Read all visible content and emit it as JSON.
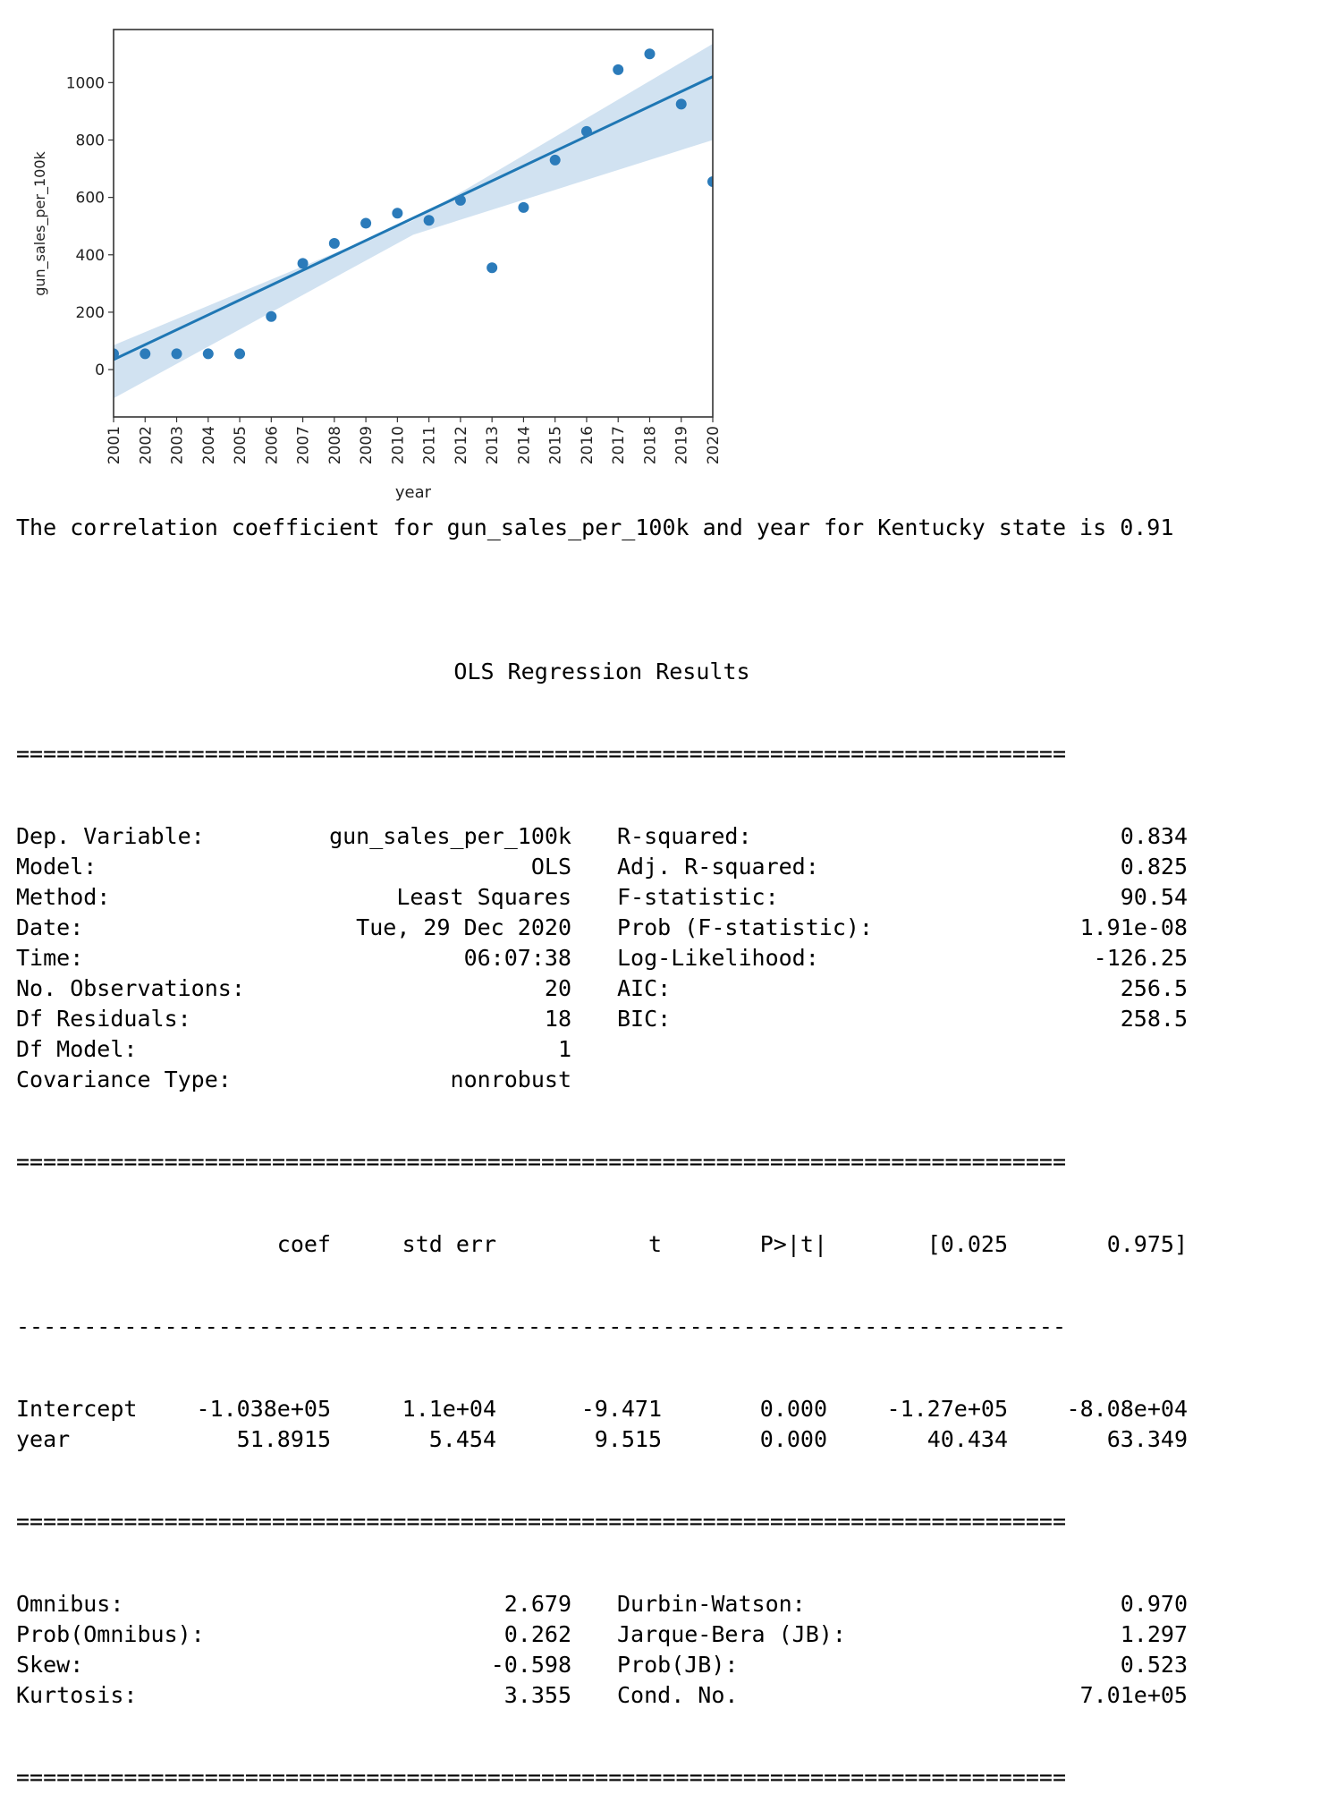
{
  "chart_data": {
    "type": "scatter",
    "title": "",
    "xlabel": "year",
    "ylabel": "gun_sales_per_100k",
    "x_ticks": [
      "2001",
      "2002",
      "2003",
      "2004",
      "2005",
      "2006",
      "2007",
      "2008",
      "2009",
      "2010",
      "2011",
      "2012",
      "2013",
      "2014",
      "2015",
      "2016",
      "2017",
      "2018",
      "2019",
      "2020"
    ],
    "y_ticks": [
      0,
      200,
      400,
      600,
      800,
      1000
    ],
    "xlim": [
      2001,
      2020
    ],
    "ylim": [
      -165,
      1185
    ],
    "points": [
      {
        "x": 2001,
        "y": 55
      },
      {
        "x": 2002,
        "y": 55
      },
      {
        "x": 2003,
        "y": 55
      },
      {
        "x": 2004,
        "y": 55
      },
      {
        "x": 2005,
        "y": 55
      },
      {
        "x": 2006,
        "y": 185
      },
      {
        "x": 2007,
        "y": 370
      },
      {
        "x": 2008,
        "y": 440
      },
      {
        "x": 2009,
        "y": 510
      },
      {
        "x": 2010,
        "y": 545
      },
      {
        "x": 2011,
        "y": 520
      },
      {
        "x": 2012,
        "y": 590
      },
      {
        "x": 2013,
        "y": 355
      },
      {
        "x": 2014,
        "y": 565
      },
      {
        "x": 2015,
        "y": 730
      },
      {
        "x": 2016,
        "y": 830
      },
      {
        "x": 2017,
        "y": 1045
      },
      {
        "x": 2018,
        "y": 1100
      },
      {
        "x": 2019,
        "y": 925
      },
      {
        "x": 2020,
        "y": 655
      }
    ],
    "fit": {
      "intercept": -103800,
      "slope": 51.8915
    },
    "band": {
      "x": [
        2001,
        2010.5,
        2020
      ],
      "lower": [
        -100,
        470,
        800
      ],
      "upper": [
        85,
        520,
        1135
      ]
    },
    "colors": {
      "points": "#2b7bba",
      "line": "#1f77b4",
      "band": "#c6dbed"
    },
    "grid": false
  },
  "correlation_text": "The correlation coefficient for gun_sales_per_100k and year for Kentucky state is 0.91",
  "ols": {
    "title": "OLS Regression Results",
    "separator_double": "==============================================================================",
    "separator_single": "------------------------------------------------------------------------------",
    "info_rows": [
      {
        "l1": "Dep. Variable:",
        "v1": "gun_sales_per_100k",
        "l2": "R-squared:",
        "v2": "0.834"
      },
      {
        "l1": "Model:",
        "v1": "OLS",
        "l2": "Adj. R-squared:",
        "v2": "0.825"
      },
      {
        "l1": "Method:",
        "v1": "Least Squares",
        "l2": "F-statistic:",
        "v2": "90.54"
      },
      {
        "l1": "Date:",
        "v1": "Tue, 29 Dec 2020",
        "l2": "Prob (F-statistic):",
        "v2": "1.91e-08"
      },
      {
        "l1": "Time:",
        "v1": "06:07:38",
        "l2": "Log-Likelihood:",
        "v2": "-126.25"
      },
      {
        "l1": "No. Observations:",
        "v1": "20",
        "l2": "AIC:",
        "v2": "256.5"
      },
      {
        "l1": "Df Residuals:",
        "v1": "18",
        "l2": "BIC:",
        "v2": "258.5"
      },
      {
        "l1": "Df Model:",
        "v1": "1",
        "l2": "",
        "v2": ""
      },
      {
        "l1": "Covariance Type:",
        "v1": "nonrobust",
        "l2": "",
        "v2": ""
      }
    ],
    "coef_headers": [
      "coef",
      "std err",
      "t",
      "P>|t|",
      "[0.025",
      "0.975]"
    ],
    "coef_rows": [
      {
        "name": "Intercept",
        "values": [
          "-1.038e+05",
          "1.1e+04",
          "-9.471",
          "0.000",
          "-1.27e+05",
          "-8.08e+04"
        ]
      },
      {
        "name": "year",
        "values": [
          "51.8915",
          "5.454",
          "9.515",
          "0.000",
          "40.434",
          "63.349"
        ]
      }
    ],
    "diag_rows": [
      {
        "l1": "Omnibus:",
        "v1": "2.679",
        "l2": "Durbin-Watson:",
        "v2": "0.970"
      },
      {
        "l1": "Prob(Omnibus):",
        "v1": "0.262",
        "l2": "Jarque-Bera (JB):",
        "v2": "1.297"
      },
      {
        "l1": "Skew:",
        "v1": "-0.598",
        "l2": "Prob(JB):",
        "v2": "0.523"
      },
      {
        "l1": "Kurtosis:",
        "v1": "3.355",
        "l2": "Cond. No.",
        "v2": "7.01e+05"
      }
    ]
  }
}
